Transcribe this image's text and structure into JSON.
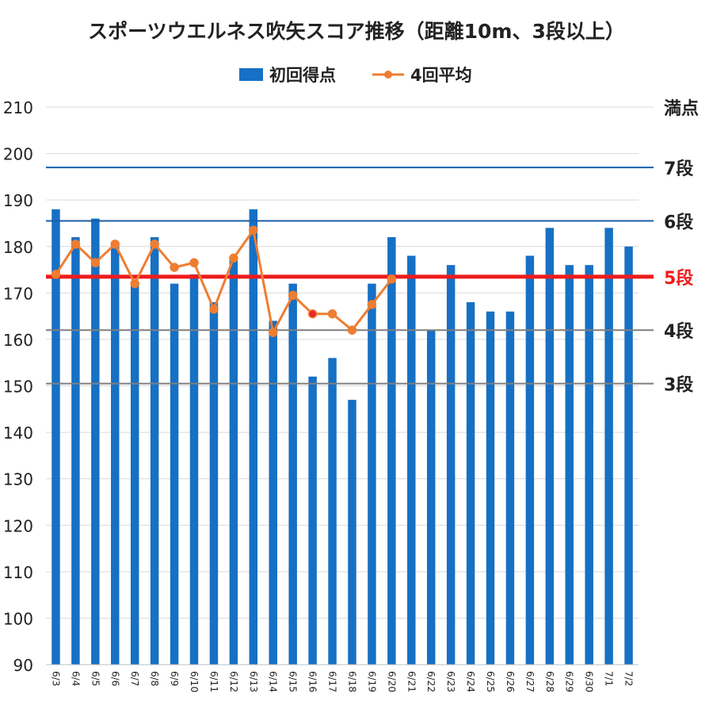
{
  "chart_data": {
    "type": "bar",
    "title": "スポーツウエルネス吹矢スコア推移（距離10m、3段以上）",
    "legend_position": "top",
    "grid": true,
    "ylim": [
      90,
      210
    ],
    "yticks": [
      90,
      100,
      110,
      120,
      130,
      140,
      150,
      160,
      170,
      180,
      190,
      200,
      210
    ],
    "categories": [
      "6/3",
      "6/4",
      "6/5",
      "6/6",
      "6/7",
      "6/8",
      "6/9",
      "6/10",
      "6/11",
      "6/12",
      "6/13",
      "6/14",
      "6/15",
      "6/16",
      "6/17",
      "6/18",
      "6/19",
      "6/20",
      "6/21",
      "6/22",
      "6/23",
      "6/24",
      "6/25",
      "6/26",
      "6/27",
      "6/28",
      "6/29",
      "6/30",
      "7/1",
      "7/2"
    ],
    "series": [
      {
        "name": "初回得点",
        "type": "bar",
        "color": "#1670c4",
        "values": [
          188,
          182,
          186,
          181,
          172,
          182,
          172,
          174,
          168,
          177,
          188,
          164,
          172,
          152,
          156,
          147,
          172,
          182,
          178,
          162,
          176,
          168,
          166,
          166,
          178,
          184,
          176,
          176,
          184,
          180
        ]
      },
      {
        "name": "4回平均",
        "type": "line",
        "color": "#ee7d31",
        "values": [
          174,
          180.5,
          176.5,
          180.5,
          172,
          180.5,
          175.5,
          176.5,
          166.5,
          177.5,
          183.5,
          161.5,
          169.5,
          165.5,
          165.5,
          162,
          167.5,
          173,
          null,
          null,
          null,
          null,
          null,
          null,
          null,
          null,
          null,
          null,
          null,
          null
        ],
        "highlight_index": 13,
        "highlight_color": "#e8262a"
      }
    ],
    "reference_lines": [
      {
        "label": "満点",
        "value": 210,
        "color": "#d9d9d9",
        "width": 1,
        "label_color": "#222222"
      },
      {
        "label": "7段",
        "value": 197,
        "color": "#1a5ea8",
        "width": 2,
        "label_color": "#222222"
      },
      {
        "label": "6段",
        "value": 185.5,
        "color": "#1a5ea8",
        "width": 2,
        "label_color": "#222222"
      },
      {
        "label": "5段",
        "value": 173.5,
        "color": "#ee1c1c",
        "width": 5,
        "label_color": "#ee1c1c"
      },
      {
        "label": "4段",
        "value": 162,
        "color": "#7f7f7f",
        "width": 2,
        "label_color": "#222222"
      },
      {
        "label": "3段",
        "value": 150.5,
        "color": "#7f7f7f",
        "width": 2,
        "label_color": "#222222"
      }
    ]
  }
}
